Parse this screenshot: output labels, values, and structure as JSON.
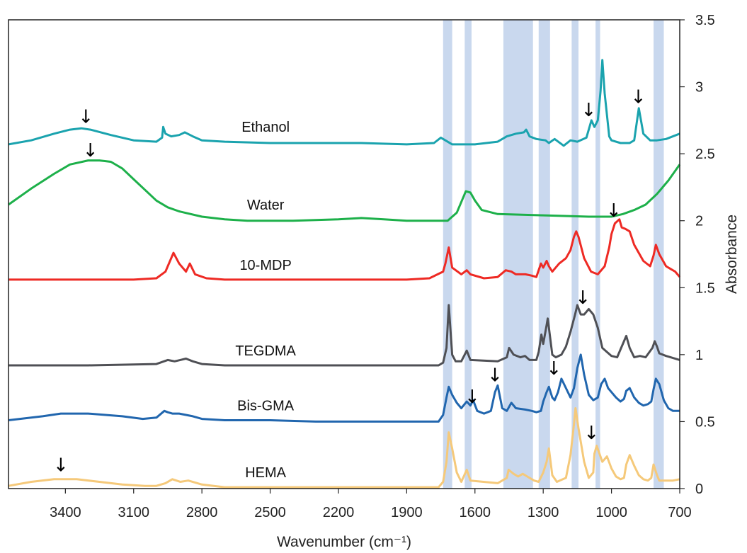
{
  "chart_data": {
    "type": "line",
    "title": "",
    "xlabel": "Wavenumber (cm⁻¹)",
    "ylabel": "Absorbance",
    "x_reversed": true,
    "xlim": [
      3650,
      700
    ],
    "ylim": [
      0,
      3.5
    ],
    "x_ticks": [
      "3400",
      "3100",
      "2800",
      "2500",
      "2200",
      "1900",
      "1600",
      "1300",
      "1000",
      "700"
    ],
    "y_ticks": [
      "0",
      "0.5",
      "1",
      "1.5",
      "2",
      "2.5",
      "3",
      "3.5"
    ],
    "grid": false,
    "highlight_bands": [
      [
        1740,
        1700
      ],
      [
        1645,
        1615
      ],
      [
        1475,
        1345
      ],
      [
        1320,
        1270
      ],
      [
        1175,
        1145
      ],
      [
        1070,
        1050
      ],
      [
        815,
        770
      ]
    ],
    "series": [
      {
        "name": "Ethanol",
        "color": "#1aa3ae",
        "x": [
          3650,
          3550,
          3450,
          3380,
          3330,
          3290,
          3200,
          3100,
          3000,
          2975,
          2970,
          2960,
          2935,
          2900,
          2875,
          2840,
          2800,
          2700,
          2500,
          2300,
          2100,
          1900,
          1780,
          1750,
          1730,
          1700,
          1600,
          1500,
          1460,
          1440,
          1420,
          1385,
          1375,
          1360,
          1330,
          1290,
          1275,
          1250,
          1210,
          1180,
          1150,
          1110,
          1100,
          1088,
          1075,
          1060,
          1048,
          1040,
          1030,
          1010,
          1000,
          960,
          920,
          900,
          880,
          860,
          830,
          800,
          760,
          700
        ],
        "y": [
          2.57,
          2.6,
          2.65,
          2.68,
          2.69,
          2.68,
          2.64,
          2.6,
          2.59,
          2.62,
          2.7,
          2.65,
          2.63,
          2.64,
          2.66,
          2.63,
          2.6,
          2.59,
          2.58,
          2.58,
          2.58,
          2.57,
          2.58,
          2.62,
          2.6,
          2.57,
          2.57,
          2.59,
          2.63,
          2.64,
          2.65,
          2.66,
          2.68,
          2.63,
          2.61,
          2.6,
          2.58,
          2.61,
          2.56,
          2.6,
          2.59,
          2.62,
          2.68,
          2.75,
          2.7,
          2.75,
          2.97,
          3.2,
          2.95,
          2.63,
          2.6,
          2.58,
          2.58,
          2.6,
          2.84,
          2.65,
          2.6,
          2.6,
          2.61,
          2.65
        ]
      },
      {
        "name": "Water",
        "color": "#1db04a",
        "x": [
          3650,
          3550,
          3450,
          3380,
          3300,
          3250,
          3200,
          3150,
          3100,
          3050,
          3000,
          2950,
          2900,
          2800,
          2700,
          2600,
          2400,
          2200,
          2100,
          2000,
          1900,
          1800,
          1720,
          1680,
          1650,
          1640,
          1620,
          1600,
          1570,
          1500,
          1300,
          1100,
          1050,
          1000,
          950,
          900,
          850,
          800,
          750,
          700
        ],
        "y": [
          2.12,
          2.24,
          2.35,
          2.42,
          2.45,
          2.45,
          2.44,
          2.39,
          2.31,
          2.23,
          2.15,
          2.1,
          2.07,
          2.03,
          2.01,
          2.0,
          2.0,
          2.01,
          2.02,
          2.01,
          2.0,
          2.0,
          2.0,
          2.06,
          2.18,
          2.22,
          2.21,
          2.15,
          2.08,
          2.05,
          2.04,
          2.03,
          2.03,
          2.03,
          2.05,
          2.08,
          2.12,
          2.2,
          2.3,
          2.42
        ]
      },
      {
        "name": "10-MDP",
        "color": "#ee2a24",
        "x": [
          3650,
          3500,
          3300,
          3100,
          3000,
          2960,
          2925,
          2900,
          2870,
          2853,
          2830,
          2780,
          2700,
          2500,
          2300,
          2100,
          1900,
          1800,
          1740,
          1730,
          1715,
          1700,
          1660,
          1636,
          1620,
          1560,
          1500,
          1465,
          1440,
          1420,
          1378,
          1350,
          1330,
          1310,
          1300,
          1285,
          1275,
          1260,
          1230,
          1200,
          1180,
          1165,
          1155,
          1145,
          1120,
          1090,
          1060,
          1030,
          1010,
          1000,
          985,
          965,
          955,
          940,
          920,
          900,
          860,
          830,
          815,
          805,
          790,
          760,
          740,
          720,
          710,
          700
        ],
        "y": [
          1.56,
          1.56,
          1.56,
          1.56,
          1.57,
          1.62,
          1.76,
          1.68,
          1.62,
          1.68,
          1.6,
          1.57,
          1.56,
          1.56,
          1.56,
          1.56,
          1.56,
          1.57,
          1.62,
          1.68,
          1.8,
          1.65,
          1.6,
          1.63,
          1.6,
          1.57,
          1.58,
          1.63,
          1.62,
          1.6,
          1.6,
          1.59,
          1.58,
          1.68,
          1.65,
          1.7,
          1.66,
          1.62,
          1.68,
          1.72,
          1.78,
          1.88,
          1.92,
          1.88,
          1.72,
          1.62,
          1.6,
          1.66,
          1.8,
          1.9,
          1.98,
          2.01,
          1.95,
          1.94,
          1.92,
          1.82,
          1.7,
          1.66,
          1.74,
          1.82,
          1.75,
          1.66,
          1.64,
          1.62,
          1.6,
          1.58
        ]
      },
      {
        "name": "TEGDMA",
        "color": "#4f5055",
        "x": [
          3650,
          3300,
          3000,
          2950,
          2920,
          2895,
          2870,
          2840,
          2800,
          2700,
          2500,
          2200,
          1900,
          1760,
          1740,
          1725,
          1715,
          1700,
          1685,
          1660,
          1636,
          1620,
          1500,
          1460,
          1450,
          1430,
          1400,
          1380,
          1360,
          1330,
          1320,
          1308,
          1300,
          1285,
          1280,
          1260,
          1245,
          1220,
          1200,
          1180,
          1160,
          1150,
          1135,
          1120,
          1100,
          1080,
          1060,
          1040,
          1020,
          1000,
          975,
          945,
          935,
          920,
          900,
          875,
          850,
          820,
          810,
          800,
          790,
          760,
          740,
          700
        ],
        "y": [
          0.92,
          0.92,
          0.93,
          0.96,
          0.95,
          0.96,
          0.97,
          0.95,
          0.93,
          0.92,
          0.92,
          0.92,
          0.92,
          0.92,
          0.94,
          1.05,
          1.37,
          1.0,
          0.95,
          0.95,
          1.03,
          0.96,
          0.95,
          0.98,
          1.05,
          1.0,
          0.98,
          0.99,
          0.96,
          0.96,
          1.02,
          1.15,
          1.08,
          1.22,
          1.27,
          1.0,
          0.98,
          1.0,
          1.06,
          1.17,
          1.3,
          1.37,
          1.3,
          1.3,
          1.34,
          1.3,
          1.2,
          1.05,
          1.02,
          0.99,
          0.98,
          1.1,
          1.14,
          1.05,
          0.98,
          0.99,
          0.98,
          1.05,
          1.1,
          1.06,
          1.01,
          0.99,
          0.98,
          0.96
        ]
      },
      {
        "name": "Bis-GMA",
        "color": "#2166ae",
        "x": [
          3650,
          3500,
          3420,
          3300,
          3150,
          3060,
          3000,
          2965,
          2950,
          2930,
          2900,
          2870,
          2840,
          2800,
          2700,
          2500,
          2300,
          2100,
          1900,
          1760,
          1740,
          1725,
          1715,
          1700,
          1680,
          1660,
          1636,
          1620,
          1608,
          1590,
          1560,
          1530,
          1512,
          1500,
          1480,
          1460,
          1440,
          1420,
          1380,
          1350,
          1330,
          1310,
          1300,
          1285,
          1275,
          1260,
          1250,
          1235,
          1220,
          1200,
          1180,
          1165,
          1150,
          1135,
          1120,
          1100,
          1080,
          1060,
          1045,
          1030,
          1015,
          1000,
          980,
          960,
          945,
          935,
          920,
          900,
          880,
          860,
          840,
          825,
          815,
          805,
          790,
          770,
          750,
          730,
          710,
          700
        ],
        "y": [
          0.51,
          0.54,
          0.56,
          0.56,
          0.54,
          0.52,
          0.53,
          0.58,
          0.57,
          0.56,
          0.56,
          0.55,
          0.54,
          0.52,
          0.51,
          0.51,
          0.5,
          0.5,
          0.5,
          0.5,
          0.55,
          0.68,
          0.76,
          0.7,
          0.64,
          0.6,
          0.65,
          0.62,
          0.66,
          0.58,
          0.56,
          0.58,
          0.72,
          0.77,
          0.6,
          0.58,
          0.64,
          0.6,
          0.59,
          0.58,
          0.57,
          0.58,
          0.65,
          0.72,
          0.76,
          0.68,
          0.66,
          0.72,
          0.82,
          0.75,
          0.68,
          0.75,
          0.9,
          1.0,
          0.85,
          0.7,
          0.66,
          0.68,
          0.78,
          0.82,
          0.75,
          0.72,
          0.68,
          0.65,
          0.67,
          0.73,
          0.75,
          0.68,
          0.64,
          0.62,
          0.63,
          0.65,
          0.74,
          0.82,
          0.78,
          0.66,
          0.6,
          0.58,
          0.58,
          0.58
        ]
      },
      {
        "name": "HEMA",
        "color": "#f5c97a",
        "x": [
          3650,
          3550,
          3450,
          3400,
          3350,
          3250,
          3150,
          3050,
          3000,
          2960,
          2930,
          2895,
          2860,
          2800,
          2700,
          2500,
          2300,
          2100,
          1900,
          1760,
          1740,
          1725,
          1715,
          1700,
          1680,
          1660,
          1636,
          1620,
          1500,
          1460,
          1452,
          1430,
          1410,
          1390,
          1370,
          1340,
          1320,
          1300,
          1285,
          1275,
          1260,
          1240,
          1200,
          1180,
          1165,
          1158,
          1145,
          1120,
          1100,
          1080,
          1075,
          1065,
          1040,
          1020,
          1000,
          980,
          960,
          945,
          935,
          920,
          900,
          880,
          860,
          840,
          825,
          815,
          800,
          790,
          760,
          730,
          700
        ],
        "y": [
          0.02,
          0.05,
          0.07,
          0.07,
          0.07,
          0.05,
          0.03,
          0.02,
          0.02,
          0.04,
          0.07,
          0.05,
          0.06,
          0.03,
          0.01,
          0.01,
          0.01,
          0.01,
          0.01,
          0.01,
          0.05,
          0.2,
          0.42,
          0.3,
          0.12,
          0.05,
          0.14,
          0.06,
          0.04,
          0.08,
          0.14,
          0.11,
          0.09,
          0.11,
          0.09,
          0.06,
          0.05,
          0.12,
          0.2,
          0.3,
          0.1,
          0.05,
          0.08,
          0.25,
          0.48,
          0.6,
          0.45,
          0.2,
          0.08,
          0.12,
          0.26,
          0.32,
          0.2,
          0.24,
          0.15,
          0.09,
          0.07,
          0.08,
          0.18,
          0.25,
          0.17,
          0.1,
          0.07,
          0.06,
          0.08,
          0.18,
          0.1,
          0.06,
          0.06,
          0.06,
          0.07
        ]
      }
    ],
    "annotations": [
      {
        "text": "↓",
        "x": 3310,
        "y": 2.73
      },
      {
        "text": "↓",
        "x": 3290,
        "y": 2.48
      },
      {
        "text": "↓",
        "x": 1100,
        "y": 2.78
      },
      {
        "text": "↓",
        "x": 882,
        "y": 2.88
      },
      {
        "text": "↓",
        "x": 990,
        "y": 2.03
      },
      {
        "text": "↓",
        "x": 1126,
        "y": 1.38
      },
      {
        "text": "↓",
        "x": 1612,
        "y": 0.64
      },
      {
        "text": "↓",
        "x": 1512,
        "y": 0.8
      },
      {
        "text": "↓",
        "x": 1253,
        "y": 0.85
      },
      {
        "text": "↓",
        "x": 3420,
        "y": 0.13
      },
      {
        "text": "↓",
        "x": 1088,
        "y": 0.37
      }
    ]
  }
}
